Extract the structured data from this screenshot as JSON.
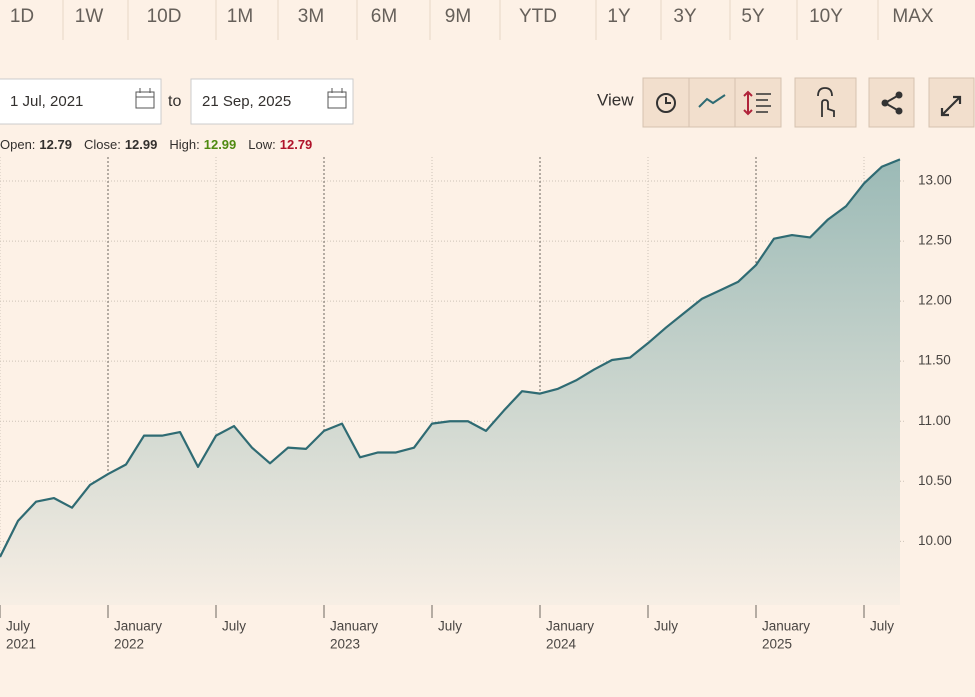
{
  "tabs": [
    "1D",
    "1W",
    "10D",
    "1M",
    "3M",
    "6M",
    "9M",
    "YTD",
    "1Y",
    "3Y",
    "5Y",
    "10Y",
    "MAX"
  ],
  "date_from": "1 Jul, 2021",
  "to_label": "to",
  "date_to": "21 Sep, 2025",
  "view_label": "View",
  "stats": [
    {
      "label": "Open:",
      "value": "12.79"
    },
    {
      "label": "Close:",
      "value": "12.99"
    },
    {
      "label": "High:",
      "value": "12.99"
    },
    {
      "label": "Low:",
      "value": "12.79"
    }
  ],
  "chart_data": {
    "type": "area",
    "x": [
      "2021-07",
      "2021-08",
      "2021-09",
      "2021-10",
      "2021-11",
      "2021-12",
      "2022-01",
      "2022-02",
      "2022-03",
      "2022-04",
      "2022-05",
      "2022-06",
      "2022-07",
      "2022-08",
      "2022-09",
      "2022-10",
      "2022-11",
      "2022-12",
      "2023-01",
      "2023-02",
      "2023-03",
      "2023-04",
      "2023-05",
      "2023-06",
      "2023-07",
      "2023-08",
      "2023-09",
      "2023-10",
      "2023-11",
      "2023-12",
      "2024-01",
      "2024-02",
      "2024-03",
      "2024-04",
      "2024-05",
      "2024-06",
      "2024-07",
      "2024-08",
      "2024-09",
      "2024-10",
      "2024-11",
      "2024-12",
      "2025-01",
      "2025-02",
      "2025-03",
      "2025-04",
      "2025-05",
      "2025-06",
      "2025-07",
      "2025-08",
      "2025-09"
    ],
    "series": [
      {
        "color": "#2f6b73",
        "values": [
          9.87,
          10.17,
          10.33,
          10.36,
          10.28,
          10.47,
          10.56,
          10.64,
          10.88,
          10.88,
          10.91,
          10.62,
          10.88,
          10.96,
          10.78,
          10.65,
          10.78,
          10.77,
          10.92,
          10.98,
          10.7,
          10.74,
          10.74,
          10.78,
          10.98,
          11.0,
          11.0,
          10.92,
          11.09,
          11.25,
          11.23,
          11.27,
          11.34,
          11.43,
          11.51,
          11.53,
          11.65,
          11.78,
          11.9,
          12.02,
          12.09,
          12.16,
          12.3,
          12.52,
          12.55,
          12.53,
          12.68,
          12.79,
          12.98,
          13.12,
          13.18
        ]
      }
    ],
    "xlim": [
      "2021-07",
      "2025-09"
    ],
    "xticks": [
      {
        "value": "2021-07",
        "label": "July",
        "year": "2021"
      },
      {
        "value": "2022-01",
        "label": "January",
        "year": "2022"
      },
      {
        "value": "2022-07",
        "label": "July"
      },
      {
        "value": "2023-01",
        "label": "January",
        "year": "2023"
      },
      {
        "value": "2023-07",
        "label": "July"
      },
      {
        "value": "2024-01",
        "label": "January",
        "year": "2024"
      },
      {
        "value": "2024-07",
        "label": "July"
      },
      {
        "value": "2025-01",
        "label": "January",
        "year": "2025"
      },
      {
        "value": "2025-07",
        "label": "July"
      }
    ],
    "ylim": [
      9.47,
      13.2
    ],
    "yticks": [
      {
        "value": 10,
        "label": "10.00"
      },
      {
        "value": 10.5,
        "label": "10.50"
      },
      {
        "value": 11,
        "label": "11.00"
      },
      {
        "value": 11.5,
        "label": "11.50"
      },
      {
        "value": 12,
        "label": "12.00"
      },
      {
        "value": 12.5,
        "label": "12.50"
      },
      {
        "value": 13,
        "label": "13.00"
      }
    ],
    "grid": true
  }
}
